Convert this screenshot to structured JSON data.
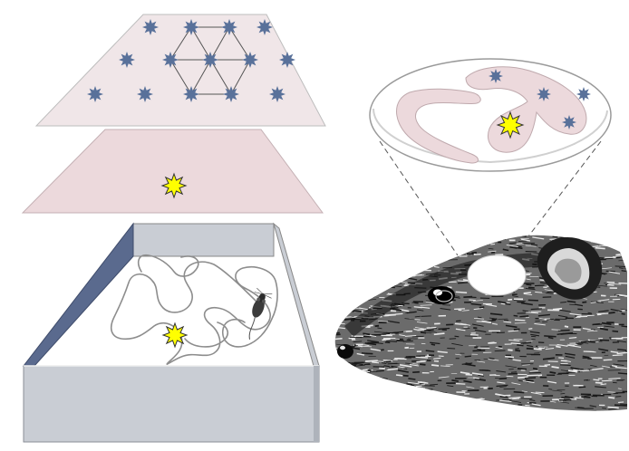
{
  "figure": {
    "panels": [
      "grid-layer",
      "place-layer",
      "open-field-arena",
      "hippocampus-inset",
      "rat-head"
    ],
    "icons": {
      "grid_field": "navy-star-icon",
      "place_field": "yellow-starburst-icon",
      "rat": "rat-icon",
      "rat_head": "rat-head-illustration"
    },
    "grid_layer": {
      "field_count": 17,
      "hexagon_overlay": true
    },
    "place_layer": {
      "field_count": 1
    },
    "hippocampus_inset": {
      "grid_field_count": 4,
      "place_field_count": 1
    }
  },
  "colors": {
    "grid_layer_fill": "#f0e6e8",
    "place_layer_fill": "#ecd9dc",
    "grid_star": "#59719a",
    "place_star": "#ffff00",
    "place_star_outline": "#333333",
    "arena_wall_dark": "#5a6a8e",
    "arena_wall_light": "#c9cdd4",
    "arena_floor": "#ffffff",
    "trajectory": "#9a9a9a",
    "hippocampus_fill": "#ecd9dc",
    "rat_fur": "#1a1a1a"
  }
}
